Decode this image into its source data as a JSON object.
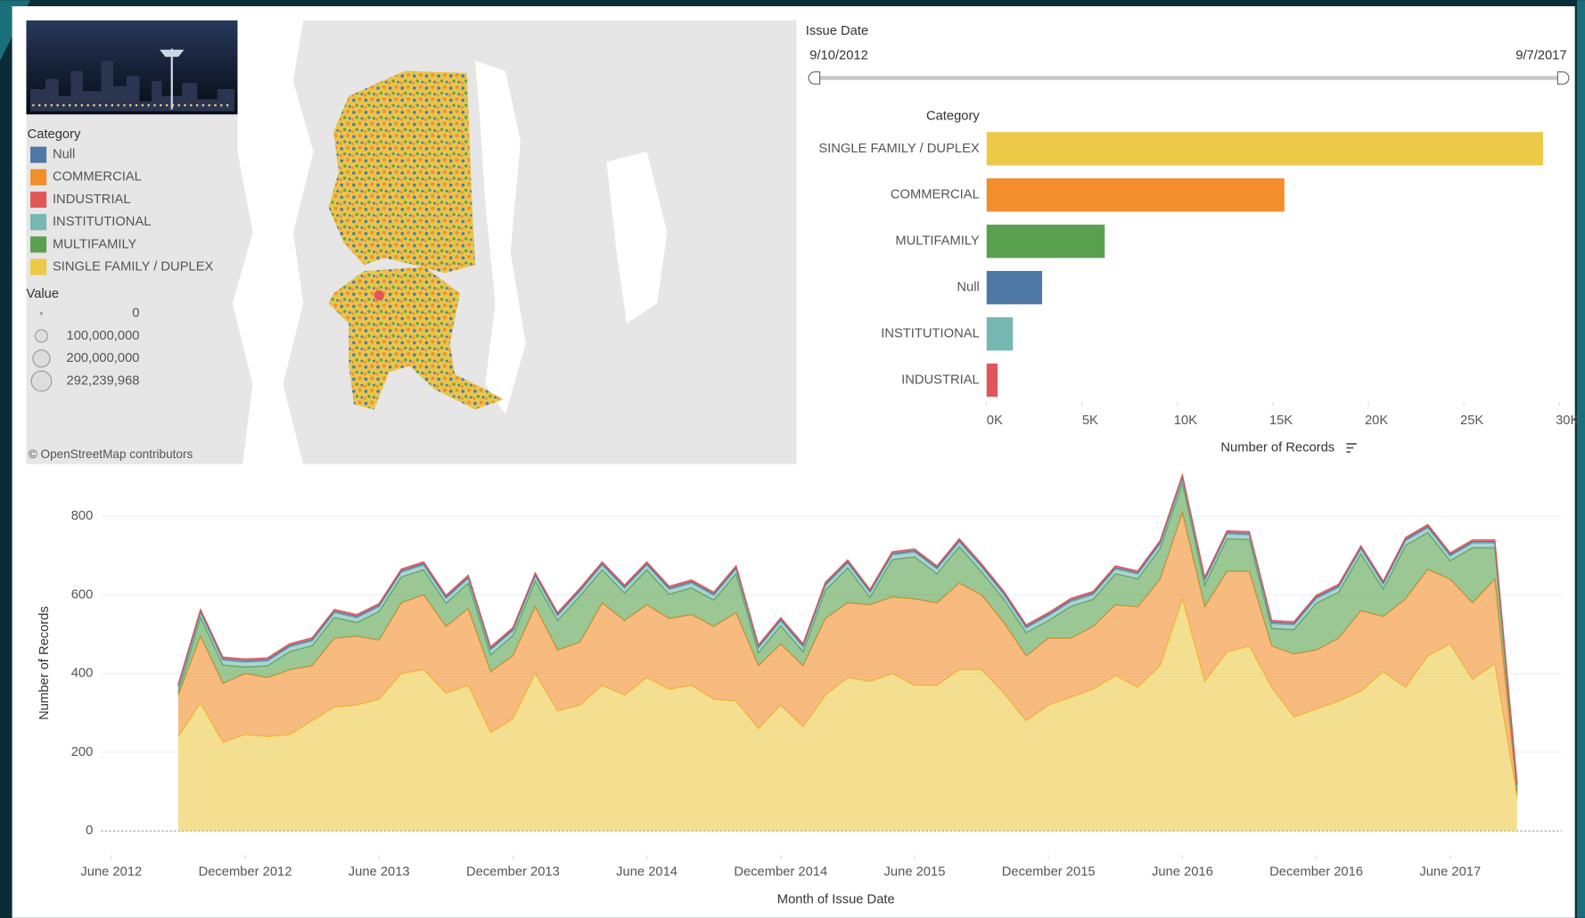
{
  "filter": {
    "title": "Issue Date",
    "start": "9/10/2012",
    "end": "9/7/2017"
  },
  "map": {
    "legend_title": "Category",
    "legend": [
      {
        "label": "Null",
        "color": "#4e79a7"
      },
      {
        "label": "COMMERCIAL",
        "color": "#f28e2b"
      },
      {
        "label": "INDUSTRIAL",
        "color": "#e15759"
      },
      {
        "label": "INSTITUTIONAL",
        "color": "#76b7b2"
      },
      {
        "label": "MULTIFAMILY",
        "color": "#59a14f"
      },
      {
        "label": "SINGLE FAMILY / DUPLEX",
        "color": "#edc948"
      }
    ],
    "size_legend_title": "Value",
    "size_legend": [
      0,
      {
        "value": 100000000,
        "label": "100,000,000"
      },
      {
        "value": 200000000,
        "label": "200,000,000"
      },
      {
        "value": 292239968,
        "label": "292,239,968"
      }
    ],
    "attribution": "© OpenStreetMap contributors"
  },
  "chart_data": [
    {
      "type": "bar",
      "orientation": "horizontal",
      "category_title": "Category",
      "x_title": "Number of Records",
      "categories": [
        "SINGLE FAMILY / DUPLEX",
        "COMMERCIAL",
        "MULTIFAMILY",
        "Null",
        "INSTITUTIONAL",
        "INDUSTRIAL"
      ],
      "values": [
        29150,
        15600,
        6190,
        2910,
        1380,
        580
      ],
      "colors": [
        "#edc948",
        "#f28e2b",
        "#59a14f",
        "#4e79a7",
        "#76b7b2",
        "#e15759"
      ],
      "xlim": [
        0,
        30500
      ],
      "xticks": [
        {
          "value": 0,
          "label": "0K"
        },
        {
          "value": 5000,
          "label": "5K"
        },
        {
          "value": 10000,
          "label": "10K"
        },
        {
          "value": 15000,
          "label": "15K"
        },
        {
          "value": 20000,
          "label": "20K"
        },
        {
          "value": 25000,
          "label": "25K"
        },
        {
          "value": 30000,
          "label": "30K"
        }
      ]
    },
    {
      "type": "area",
      "stacked": true,
      "x_title": "Month of Issue Date",
      "y_title": "Number of Records",
      "x": [
        "2012-09",
        "2012-10",
        "2012-11",
        "2012-12",
        "2013-01",
        "2013-02",
        "2013-03",
        "2013-04",
        "2013-05",
        "2013-06",
        "2013-07",
        "2013-08",
        "2013-09",
        "2013-10",
        "2013-11",
        "2013-12",
        "2014-01",
        "2014-02",
        "2014-03",
        "2014-04",
        "2014-05",
        "2014-06",
        "2014-07",
        "2014-08",
        "2014-09",
        "2014-10",
        "2014-11",
        "2014-12",
        "2015-01",
        "2015-02",
        "2015-03",
        "2015-04",
        "2015-05",
        "2015-06",
        "2015-07",
        "2015-08",
        "2015-09",
        "2015-10",
        "2015-11",
        "2015-12",
        "2016-01",
        "2016-02",
        "2016-03",
        "2016-04",
        "2016-05",
        "2016-06",
        "2016-07",
        "2016-08",
        "2016-09",
        "2016-10",
        "2016-11",
        "2016-12",
        "2017-01",
        "2017-02",
        "2017-03",
        "2017-04",
        "2017-05",
        "2017-06",
        "2017-07",
        "2017-08",
        "2017-09"
      ],
      "series": [
        {
          "color": "#edc948",
          "values": [
            240,
            325,
            225,
            245,
            240,
            245,
            280,
            315,
            320,
            335,
            400,
            410,
            350,
            370,
            250,
            285,
            400,
            305,
            320,
            370,
            345,
            390,
            360,
            370,
            335,
            330,
            260,
            320,
            265,
            345,
            390,
            380,
            400,
            370,
            370,
            410,
            410,
            350,
            280,
            320,
            340,
            360,
            395,
            365,
            420,
            590,
            380,
            455,
            470,
            365,
            290,
            310,
            330,
            355,
            405,
            365,
            445,
            475,
            385,
            425,
            85
          ]
        },
        {
          "color": "#f28e2b",
          "values": [
            105,
            170,
            150,
            155,
            150,
            165,
            140,
            175,
            175,
            150,
            180,
            190,
            170,
            195,
            155,
            160,
            170,
            155,
            160,
            210,
            190,
            185,
            180,
            180,
            185,
            225,
            160,
            155,
            155,
            195,
            190,
            195,
            195,
            220,
            210,
            220,
            190,
            180,
            165,
            170,
            150,
            160,
            180,
            205,
            220,
            220,
            190,
            205,
            190,
            105,
            160,
            150,
            160,
            205,
            140,
            225,
            220,
            165,
            195,
            215,
            10
          ]
        },
        {
          "color": "#59a14f",
          "values": [
            8,
            48,
            47,
            17,
            30,
            46,
            51,
            53,
            35,
            73,
            66,
            64,
            59,
            65,
            43,
            52,
            66,
            75,
            117,
            84,
            70,
            89,
            62,
            68,
            67,
            99,
            33,
            47,
            36,
            72,
            89,
            19,
            95,
            107,
            74,
            93,
            59,
            59,
            59,
            45,
            81,
            69,
            79,
            71,
            78,
            75,
            55,
            83,
            81,
            45,
            62,
            119,
            117,
            145,
            70,
            136,
            94,
            47,
            140,
            80,
            6
          ]
        },
        {
          "color": "#76b7b2",
          "values": [
            12,
            12,
            12,
            12,
            12,
            12,
            12,
            12,
            12,
            12,
            12,
            12,
            12,
            12,
            12,
            12,
            12,
            12,
            12,
            12,
            12,
            12,
            12,
            12,
            12,
            12,
            12,
            12,
            12,
            12,
            12,
            12,
            12,
            12,
            12,
            12,
            12,
            12,
            12,
            12,
            12,
            12,
            12,
            12,
            12,
            12,
            12,
            12,
            12,
            12,
            12,
            12,
            12,
            12,
            12,
            12,
            12,
            12,
            12,
            12,
            12
          ]
        },
        {
          "color": "#4e79a7",
          "values": [
            4,
            4,
            4,
            4,
            4,
            4,
            4,
            4,
            4,
            4,
            4,
            4,
            4,
            4,
            4,
            4,
            4,
            4,
            4,
            4,
            4,
            4,
            4,
            4,
            4,
            4,
            4,
            4,
            4,
            4,
            4,
            4,
            4,
            4,
            4,
            4,
            4,
            4,
            4,
            4,
            4,
            4,
            4,
            4,
            4,
            4,
            4,
            4,
            4,
            4,
            4,
            4,
            4,
            4,
            4,
            4,
            4,
            4,
            4,
            4,
            4
          ]
        },
        {
          "color": "#e15759",
          "values": [
            4,
            4,
            4,
            4,
            4,
            4,
            4,
            4,
            4,
            4,
            4,
            4,
            4,
            4,
            4,
            4,
            4,
            4,
            4,
            4,
            4,
            4,
            4,
            4,
            4,
            4,
            4,
            4,
            4,
            4,
            4,
            4,
            4,
            4,
            4,
            4,
            4,
            4,
            4,
            4,
            4,
            4,
            4,
            4,
            4,
            4,
            4,
            4,
            4,
            4,
            4,
            4,
            4,
            4,
            4,
            4,
            4,
            4,
            4,
            4,
            4
          ]
        }
      ],
      "xlim": [
        "2012-05",
        "2017-11"
      ],
      "xticks": [
        {
          "value": "2012-06",
          "label": "June 2012"
        },
        {
          "value": "2012-12",
          "label": "December 2012"
        },
        {
          "value": "2013-06",
          "label": "June 2013"
        },
        {
          "value": "2013-12",
          "label": "December 2013"
        },
        {
          "value": "2014-06",
          "label": "June 2014"
        },
        {
          "value": "2014-12",
          "label": "December 2014"
        },
        {
          "value": "2015-06",
          "label": "June 2015"
        },
        {
          "value": "2015-12",
          "label": "December 2015"
        },
        {
          "value": "2016-06",
          "label": "June 2016"
        },
        {
          "value": "2016-12",
          "label": "December 2016"
        },
        {
          "value": "2017-06",
          "label": "June 2017"
        }
      ],
      "ylim": [
        0,
        920
      ],
      "yticks": [
        0,
        200,
        400,
        600,
        800
      ],
      "grid": true
    }
  ]
}
